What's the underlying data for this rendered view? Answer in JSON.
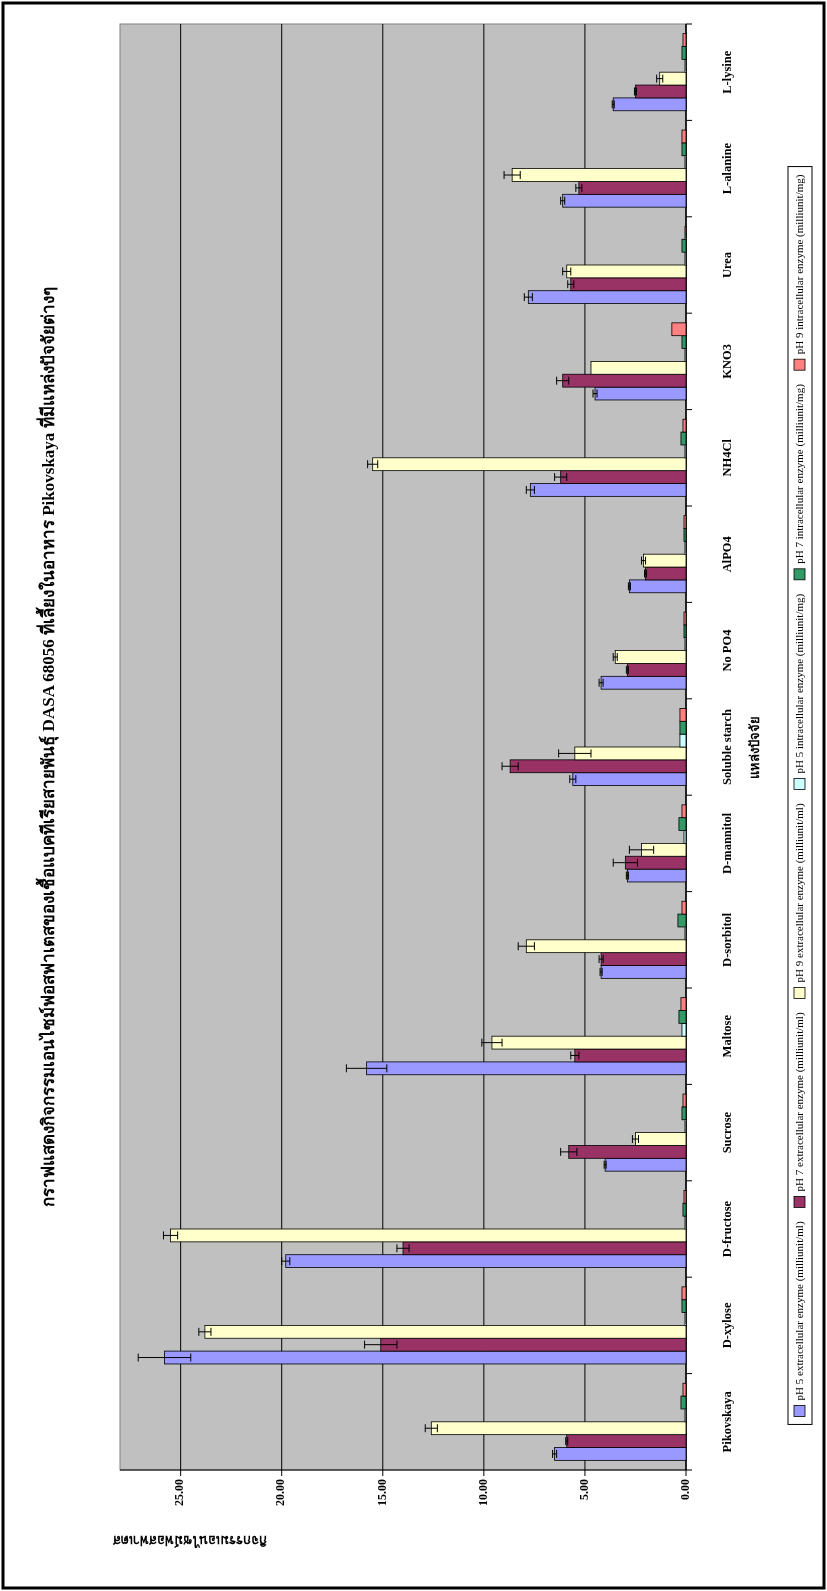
{
  "chart_data": {
    "type": "bar",
    "orientation": "horizontal",
    "title": "กราฟแสดงกิจกรรมเอนไซม์ฟอสฟาเตสของเชื้อแบคทีเรียสายพันธุ์ DASA 68056 ที่เลี้ยงในอาหาร Pikovskaya ที่มีแหล่งปัจจัยต่างๆ",
    "xlabel": "กิจกรรมเอนไซม์ฟอสฟาเตส",
    "ylabel": "แหล่งปัจจัย",
    "categories": [
      "L-lysine",
      "L-alanine",
      "Urea",
      "KNO3",
      "NH4Cl",
      "AlPO4",
      "No PO4",
      "Soluble starch",
      "D-mannitol",
      "D-sorbitol",
      "Maltose",
      "Sucrose",
      "D-fructose",
      "D-xylose",
      "Pikovskaya"
    ],
    "series": [
      {
        "name": "pH 5 extracellular enzyme (milliunit/ml)",
        "color": "#9999ff",
        "values": [
          3.6,
          6.1,
          7.8,
          4.5,
          7.7,
          2.8,
          4.2,
          5.6,
          2.9,
          4.2,
          15.8,
          4.0,
          19.8,
          25.8,
          6.5
        ],
        "errors": [
          0.05,
          0.1,
          0.2,
          0.1,
          0.2,
          0.05,
          0.1,
          0.15,
          0.05,
          0.05,
          1.0,
          0.05,
          0.2,
          1.3,
          0.1
        ]
      },
      {
        "name": "pH 7 extracellular enzyme (milliunit/ml)",
        "color": "#993366",
        "values": [
          2.5,
          5.3,
          5.7,
          6.1,
          6.2,
          2.0,
          2.9,
          8.7,
          3.0,
          4.2,
          5.5,
          5.8,
          14.0,
          15.1,
          5.9
        ],
        "errors": [
          0.05,
          0.15,
          0.15,
          0.3,
          0.3,
          0.05,
          0.05,
          0.4,
          0.6,
          0.1,
          0.2,
          0.4,
          0.3,
          0.8,
          0.05
        ]
      },
      {
        "name": "pH 9 extracellular enzyme (milliunit/ml)",
        "color": "#ffffcc",
        "values": [
          1.3,
          8.6,
          5.9,
          4.7,
          15.5,
          2.1,
          3.5,
          5.5,
          2.2,
          7.9,
          9.6,
          2.5,
          25.5,
          23.8,
          12.6
        ],
        "errors": [
          0.15,
          0.4,
          0.2,
          null,
          0.25,
          0.1,
          0.1,
          0.8,
          0.6,
          0.4,
          0.5,
          0.15,
          0.35,
          0.3,
          0.3
        ]
      },
      {
        "name": "pH 5 intracellular enzyme (milliunit/mg)",
        "color": "#ccffff",
        "values": [
          0.05,
          0.05,
          0.05,
          0.05,
          0.05,
          0.05,
          0.05,
          0.3,
          0.1,
          0.05,
          0.2,
          0.05,
          0.05,
          0.05,
          0.05
        ]
      },
      {
        "name": "pH 7 intracellular enzyme (milliunit/mg)",
        "color": "#339966",
        "values": [
          0.2,
          0.2,
          0.2,
          0.2,
          0.25,
          0.1,
          0.1,
          0.3,
          0.35,
          0.4,
          0.35,
          0.2,
          0.15,
          0.2,
          0.25
        ]
      },
      {
        "name": "pH 9 intracellular enzyme (milliunit/mg)",
        "color": "#ff8080",
        "values": [
          0.15,
          0.2,
          0.05,
          0.7,
          0.15,
          0.1,
          0.1,
          0.3,
          0.2,
          0.2,
          0.25,
          0.15,
          0.1,
          0.2,
          0.15
        ]
      }
    ],
    "xlim": [
      28,
      0
    ],
    "xticks": [
      {
        "value": 0,
        "label": "0.00"
      },
      {
        "value": 5,
        "label": "5.00"
      },
      {
        "value": 10,
        "label": "10.00"
      },
      {
        "value": 15,
        "label": "15.00"
      },
      {
        "value": 20,
        "label": "20.00"
      },
      {
        "value": 25,
        "label": "25.00"
      }
    ],
    "grid": "x",
    "legend": "right"
  }
}
